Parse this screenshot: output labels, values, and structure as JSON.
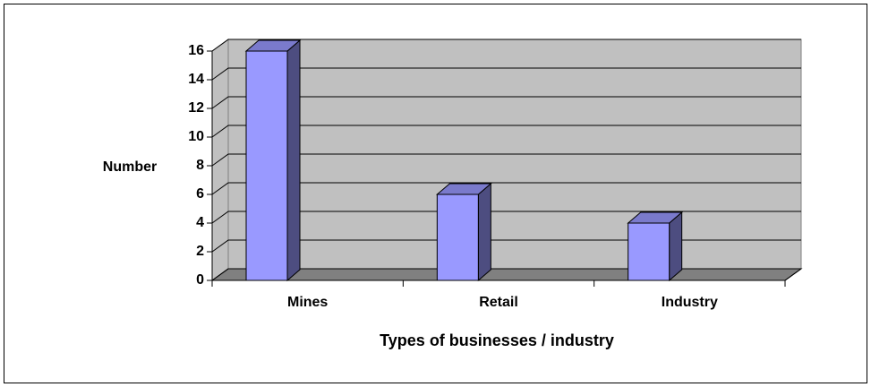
{
  "chart_data": {
    "type": "bar",
    "categories": [
      "Mines",
      "Retail",
      "Industry"
    ],
    "values": [
      16,
      6,
      4
    ],
    "color": "#9999ff",
    "ylabel": "Number",
    "xlabel": "Types of businesses / industry",
    "ylim": [
      0,
      16
    ],
    "yticks": [
      0,
      2,
      4,
      6,
      8,
      10,
      12,
      14,
      16
    ],
    "grid": true
  }
}
